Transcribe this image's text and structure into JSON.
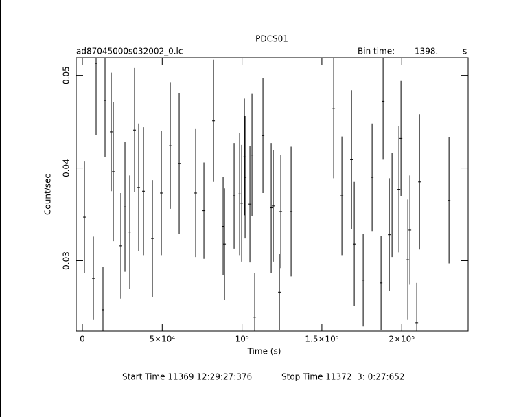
{
  "chart_data": {
    "type": "errorbar",
    "title": "PDCS01",
    "subtitle": "ad87045000s032002_0.lc",
    "bin_time_label": "Bin time:",
    "bin_time": "1398.",
    "bin_time_unit": "s",
    "x_label": "Time (s)",
    "y_label": "Count/sec",
    "footer_start": "Start Time 11369 12:29:27:376",
    "footer_stop": "Stop Time 11372  3: 0:27:652",
    "color": "#000000",
    "xlim": [
      -3870,
      241600
    ],
    "ylim": [
      0.0224,
      0.0519
    ],
    "xticks": [
      {
        "value": 0,
        "label": "0"
      },
      {
        "value": 50000,
        "label": "5×10⁴"
      },
      {
        "value": 100000,
        "label": "10⁵"
      },
      {
        "value": 150000,
        "label": "1.5×10⁵"
      },
      {
        "value": 200000,
        "label": "2×10⁵"
      }
    ],
    "yticks": [
      0.03,
      0.04,
      0.05
    ],
    "x": [
      1290,
      6880,
      8600,
      12900,
      14190,
      18060,
      19350,
      24080,
      26660,
      29670,
      32680,
      35260,
      38270,
      43860,
      49450,
      55040,
      60630,
      70950,
      76110,
      82130,
      88150,
      89010,
      95030,
      98470,
      99760,
      101480,
      101910,
      104920,
      106210,
      107930,
      113090,
      118250,
      119540,
      123410,
      124270,
      130720,
      157380,
      162540,
      168560,
      170280,
      175870,
      181460,
      187050,
      188340,
      192210,
      193930,
      198230,
      199520,
      203820,
      205110,
      209410,
      211130,
      229620
    ],
    "values": [
      0.0347,
      0.0281,
      0.0513,
      0.0247,
      0.0473,
      0.0439,
      0.0396,
      0.0316,
      0.0358,
      0.0331,
      0.0441,
      0.0379,
      0.0375,
      0.0324,
      0.0373,
      0.0424,
      0.0405,
      0.0373,
      0.0354,
      0.0451,
      0.0337,
      0.0318,
      0.037,
      0.0372,
      0.0362,
      0.0412,
      0.039,
      0.0361,
      0.0414,
      0.0239,
      0.0435,
      0.0357,
      0.0359,
      0.0266,
      0.0353,
      0.0353,
      0.0464,
      0.037,
      0.0409,
      0.0318,
      0.0279,
      0.039,
      0.0276,
      0.0472,
      0.0328,
      0.036,
      0.0377,
      0.0432,
      0.0301,
      0.0333,
      0.0233,
      0.0385,
      0.0365
    ],
    "errors": [
      0.006,
      0.0045,
      0.0077,
      0.0046,
      0.0061,
      0.0064,
      0.0075,
      0.0057,
      0.007,
      0.0061,
      0.0067,
      0.0069,
      0.0069,
      0.0063,
      0.0067,
      0.0068,
      0.0076,
      0.0069,
      0.0052,
      0.0066,
      0.0053,
      0.006,
      0.0057,
      0.0066,
      0.0063,
      0.0063,
      0.0066,
      0.0063,
      0.0066,
      0.0048,
      0.0062,
      0.007,
      0.006,
      0.0041,
      0.0061,
      0.007,
      0.0075,
      0.0064,
      0.0075,
      0.0067,
      0.005,
      0.0058,
      0.0051,
      0.0063,
      0.0061,
      0.0056,
      0.0068,
      0.0062,
      0.0065,
      0.0059,
      0.0043,
      0.0073,
      0.0068
    ]
  }
}
